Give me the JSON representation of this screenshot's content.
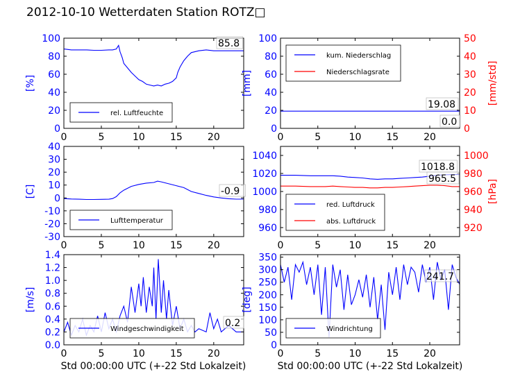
{
  "title": "2012-10-10 Wetterdaten Station ROTZ□",
  "colors": {
    "blue": "#0000ff",
    "red": "#ff0000",
    "frame": "#000000",
    "light_blue": "#6b6bff"
  },
  "chart_data": [
    {
      "type": "line",
      "id": "humidity",
      "ylabel": "[%]",
      "xlim": [
        0,
        24
      ],
      "ylim": [
        0,
        100
      ],
      "xticks": [
        0,
        5,
        10,
        15,
        20
      ],
      "yticks": [
        0,
        20,
        40,
        60,
        80,
        100
      ],
      "legend": "bottom-left",
      "annotation": "85.8",
      "series": [
        {
          "name": "rel. Luftfeuchte",
          "color": "#0000ff",
          "x": [
            0,
            1,
            2,
            3,
            4,
            5,
            6,
            6.5,
            7,
            7.3,
            7.5,
            7.8,
            8,
            8.5,
            9,
            9.5,
            10,
            10.5,
            11,
            11.5,
            12,
            12.5,
            13,
            13.5,
            14,
            14.5,
            15,
            15.2,
            15.5,
            16,
            16.5,
            17,
            18,
            19,
            20,
            21,
            22,
            23,
            24
          ],
          "y": [
            88,
            87,
            87,
            87,
            86.5,
            86.5,
            87,
            87,
            88,
            92,
            85,
            78,
            72,
            67,
            62,
            58,
            54,
            52,
            49,
            48,
            47,
            48,
            47,
            49,
            50,
            52,
            56,
            62,
            68,
            75,
            80,
            84,
            86,
            87,
            86,
            86,
            86,
            86,
            86
          ]
        }
      ]
    },
    {
      "type": "line",
      "id": "precipitation",
      "ylabel": "[mm]",
      "y2label": "[mm/std]",
      "xlim": [
        0,
        24
      ],
      "ylim": [
        0,
        100
      ],
      "y2lim": [
        0,
        50
      ],
      "xticks": [
        0,
        5,
        10,
        15,
        20
      ],
      "yticks": [
        0,
        20,
        40,
        60,
        80,
        100
      ],
      "y2ticks": [
        0,
        10,
        20,
        30,
        40,
        50
      ],
      "legend": "top-left",
      "annotations": [
        "19.08",
        "0.0"
      ],
      "series": [
        {
          "name": "kum. Niederschlag",
          "color": "#0000ff",
          "axis": "left",
          "x": [
            0,
            24
          ],
          "y": [
            19.08,
            19.08
          ]
        },
        {
          "name": "Niederschlagsrate",
          "color": "#ff0000",
          "axis": "right",
          "x": [
            0,
            24
          ],
          "y": [
            0,
            0
          ]
        }
      ]
    },
    {
      "type": "line",
      "id": "temperature",
      "ylabel": "[C]",
      "xlim": [
        0,
        24
      ],
      "ylim": [
        -30,
        40
      ],
      "xticks": [
        0,
        5,
        10,
        15,
        20
      ],
      "yticks": [
        -30,
        -20,
        -10,
        0,
        10,
        20,
        30,
        40
      ],
      "legend": "bottom-left",
      "annotation": "-0.9",
      "series": [
        {
          "name": "Lufttemperatur",
          "color": "#0000ff",
          "x": [
            0,
            1,
            2,
            3,
            4,
            5,
            6,
            6.5,
            7,
            7.5,
            8,
            8.5,
            9,
            10,
            11,
            12,
            12.5,
            13,
            14,
            15,
            16,
            17,
            18,
            19,
            20,
            21,
            22,
            23,
            24
          ],
          "y": [
            -0.5,
            -0.8,
            -1,
            -1.2,
            -1.2,
            -1.1,
            -1,
            -0.5,
            1,
            4,
            6,
            7.5,
            9,
            10.5,
            11.5,
            12,
            13,
            12.5,
            11,
            9.5,
            8,
            5,
            3.5,
            2,
            0.8,
            0,
            -0.6,
            -0.9,
            -0.9
          ]
        }
      ]
    },
    {
      "type": "line",
      "id": "pressure",
      "ylabel": "",
      "y2label": "[hPa]",
      "xlim": [
        0,
        24
      ],
      "ylim": [
        950,
        1050
      ],
      "y2lim": [
        910,
        1010
      ],
      "xticks": [
        0,
        5,
        10,
        15,
        20
      ],
      "yticks": [
        960,
        980,
        1000,
        1020,
        1040
      ],
      "y2ticks": [
        920,
        940,
        960,
        980,
        1000
      ],
      "legend": "bottom-left",
      "annotations": [
        "1018.8",
        "965.5"
      ],
      "series": [
        {
          "name": "red. Luftdruck",
          "color": "#0000ff",
          "axis": "left",
          "x": [
            0,
            2,
            4,
            6,
            7,
            8,
            9,
            10,
            11,
            12,
            13,
            14,
            15,
            16,
            17,
            18,
            19,
            20,
            21,
            22,
            23,
            24
          ],
          "y": [
            1018,
            1018,
            1017.5,
            1017.5,
            1017.5,
            1017,
            1016,
            1015.5,
            1015,
            1014,
            1013.5,
            1014,
            1014,
            1014.5,
            1015,
            1015.5,
            1016,
            1017,
            1018,
            1018.5,
            1018.8,
            1018.8
          ]
        },
        {
          "name": "abs. Luftdruck",
          "color": "#ff0000",
          "axis": "right",
          "x": [
            0,
            2,
            4,
            6,
            7,
            8,
            9,
            10,
            11,
            12,
            13,
            14,
            15,
            16,
            17,
            18,
            19,
            20,
            21,
            22,
            23,
            24
          ],
          "y": [
            966,
            966,
            965.5,
            965.5,
            966,
            965.5,
            965,
            964.5,
            964.5,
            964,
            964,
            964.5,
            964.5,
            965,
            965.5,
            966,
            966.5,
            967,
            967,
            966.5,
            965.5,
            965.5
          ]
        }
      ]
    },
    {
      "type": "line",
      "id": "windspeed",
      "ylabel": "[m/s]",
      "xlim": [
        0,
        24
      ],
      "ylim": [
        0,
        1.4
      ],
      "xticks": [
        0,
        5,
        10,
        15,
        20
      ],
      "yticks": [
        0.0,
        0.2,
        0.4,
        0.6,
        0.8,
        1.0,
        1.2,
        1.4
      ],
      "legend": "bottom-left",
      "annotation": "0.2",
      "series": [
        {
          "name": "Windgeschwindigkeit",
          "color": "#0000ff",
          "x": [
            0,
            0.5,
            1,
            1.5,
            2,
            2.5,
            3,
            3.5,
            4,
            4.5,
            5,
            5.5,
            6,
            6.5,
            7,
            7.5,
            8,
            8.5,
            9,
            9.5,
            10,
            10.3,
            10.6,
            11,
            11.4,
            11.8,
            12,
            12.3,
            12.6,
            13,
            13.3,
            13.7,
            14,
            14.5,
            15,
            15.5,
            16,
            16.5,
            17,
            17.5,
            18,
            19,
            19.5,
            20,
            20.5,
            21,
            22,
            23,
            24
          ],
          "y": [
            0.2,
            0.35,
            0.15,
            0.3,
            0.2,
            0.4,
            0.15,
            0.3,
            0.2,
            0.45,
            0.2,
            0.5,
            0.25,
            0.4,
            0.2,
            0.45,
            0.6,
            0.35,
            0.9,
            0.5,
            0.95,
            0.6,
            1.05,
            0.5,
            0.9,
            0.6,
            1.2,
            0.4,
            1.33,
            0.5,
            1.0,
            0.4,
            0.85,
            0.3,
            0.6,
            0.25,
            0.4,
            0.2,
            0.3,
            0.2,
            0.25,
            0.2,
            0.5,
            0.25,
            0.4,
            0.2,
            0.3,
            0.2,
            0.2
          ]
        }
      ]
    },
    {
      "type": "line",
      "id": "winddirection",
      "ylabel": "[deg]",
      "xlim": [
        0,
        24
      ],
      "ylim": [
        0,
        360
      ],
      "xticks": [
        0,
        5,
        10,
        15,
        20
      ],
      "yticks": [
        0,
        50,
        100,
        150,
        200,
        250,
        300,
        350
      ],
      "legend": "bottom-left",
      "annotation": "241.7",
      "series": [
        {
          "name": "Windrichtung",
          "color": "#0000ff",
          "x": [
            0,
            0.5,
            1,
            1.5,
            2,
            2.5,
            3,
            3.5,
            4,
            4.5,
            5,
            5.5,
            6,
            6.5,
            7,
            7.5,
            8,
            8.5,
            9,
            9.5,
            10,
            10.5,
            11,
            11.5,
            12,
            12.5,
            13,
            13.5,
            14,
            14.5,
            15,
            15.5,
            16,
            16.5,
            17,
            17.5,
            18,
            18.5,
            19,
            19.5,
            20,
            20.5,
            21,
            21.5,
            22,
            22.5,
            23,
            23.5,
            24
          ],
          "y": [
            320,
            250,
            310,
            180,
            320,
            290,
            330,
            240,
            310,
            200,
            320,
            120,
            310,
            30,
            320,
            230,
            300,
            140,
            280,
            160,
            200,
            260,
            190,
            280,
            150,
            270,
            100,
            240,
            60,
            290,
            200,
            310,
            180,
            320,
            240,
            310,
            290,
            210,
            320,
            250,
            310,
            180,
            330,
            260,
            300,
            140,
            320,
            270,
            241.7
          ]
        }
      ]
    }
  ],
  "axis_labels": {
    "xlabel_left": "Std 00:00:00 UTC (+-22 Std Lokalzeit)",
    "xlabel_right": "Std 00:00:00 UTC (+-22 Std Lokalzeit)"
  }
}
